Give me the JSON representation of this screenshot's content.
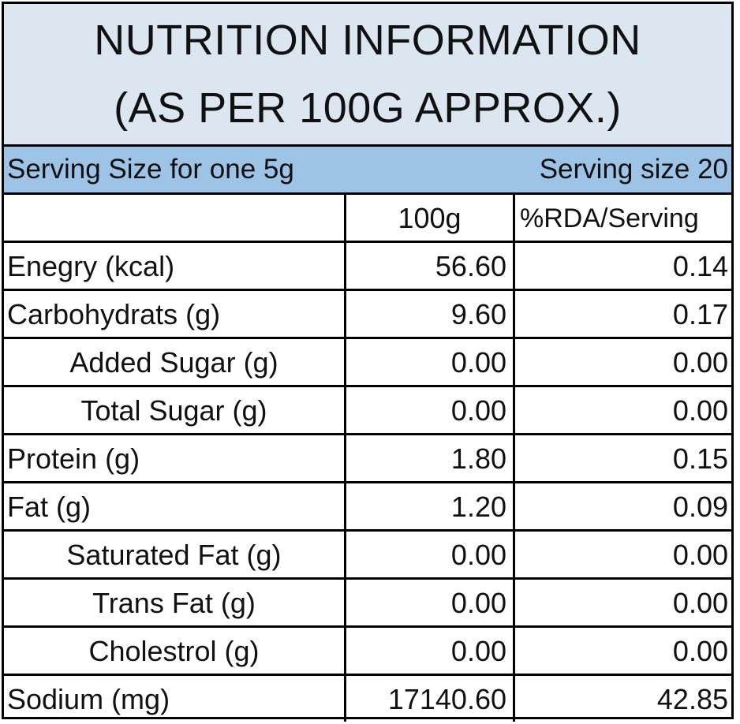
{
  "title": {
    "line1": "NUTRITION INFORMATION",
    "line2": "(AS PER 100G APPROX.)"
  },
  "serving": {
    "left": "Serving Size for one 5g",
    "right": "Serving size 20"
  },
  "columns": {
    "label": "",
    "per100g": "100g",
    "rda": "%RDA/Serving"
  },
  "rows": [
    {
      "label": "Enegry (kcal)",
      "per100g": "56.60",
      "rda": "0.14",
      "indent": false
    },
    {
      "label": "Carbohydrats (g)",
      "per100g": "9.60",
      "rda": "0.17",
      "indent": false
    },
    {
      "label": "Added Sugar (g)",
      "per100g": "0.00",
      "rda": "0.00",
      "indent": true
    },
    {
      "label": "Total Sugar (g)",
      "per100g": "0.00",
      "rda": "0.00",
      "indent": true
    },
    {
      "label": "Protein (g)",
      "per100g": "1.80",
      "rda": "0.15",
      "indent": false
    },
    {
      "label": "Fat (g)",
      "per100g": "1.20",
      "rda": "0.09",
      "indent": false
    },
    {
      "label": "Saturated Fat (g)",
      "per100g": "0.00",
      "rda": "0.00",
      "indent": true
    },
    {
      "label": "Trans Fat (g)",
      "per100g": "0.00",
      "rda": "0.00",
      "indent": true
    },
    {
      "label": "Cholestrol (g)",
      "per100g": "0.00",
      "rda": "0.00",
      "indent": true
    },
    {
      "label": "Sodium (mg)",
      "per100g": "17140.60",
      "rda": "42.85",
      "indent": false
    }
  ],
  "colors": {
    "title_bg": "#dce6f1",
    "serving_bg": "#9dc3e6",
    "border": "#000000"
  }
}
